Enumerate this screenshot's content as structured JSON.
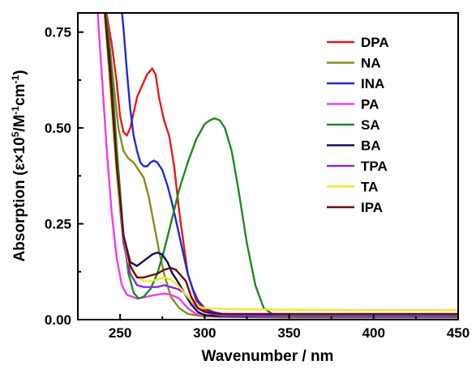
{
  "chart_data": {
    "type": "line",
    "xlabel": "Wavenumber / nm",
    "ylabel_main": "Absorption (ε×10",
    "ylabel_sup1": "5",
    "ylabel_mid": "/M",
    "ylabel_sup2": "-1",
    "ylabel_end": "cm",
    "ylabel_sup3": "-1",
    "ylabel_close": ")",
    "xlim": [
      225,
      450
    ],
    "ylim": [
      0.0,
      0.8
    ],
    "xticks": [
      250,
      300,
      350,
      400,
      450
    ],
    "xtick_labels": [
      "250",
      "300",
      "350",
      "400",
      "450"
    ],
    "yticks": [
      0.0,
      0.25,
      0.5,
      0.75
    ],
    "ytick_labels": [
      "0.00",
      "0.25",
      "0.50",
      "0.75"
    ],
    "legend_position": "top-right",
    "grid": false,
    "series": [
      {
        "name": "DPA",
        "color": "#e41a1c",
        "x": [
          240,
          245,
          248,
          250,
          252,
          254,
          256,
          258,
          260,
          263,
          266,
          269,
          271,
          273,
          276,
          279,
          282,
          285,
          290,
          295,
          300,
          310,
          320,
          350,
          400,
          450
        ],
        "y": [
          0.85,
          0.72,
          0.62,
          0.53,
          0.49,
          0.48,
          0.5,
          0.54,
          0.58,
          0.61,
          0.64,
          0.655,
          0.64,
          0.58,
          0.52,
          0.48,
          0.4,
          0.28,
          0.12,
          0.05,
          0.025,
          0.015,
          0.012,
          0.01,
          0.01,
          0.01
        ]
      },
      {
        "name": "NA",
        "color": "#8b8b1a",
        "x": [
          240,
          243,
          246,
          249,
          252,
          255,
          258,
          261,
          264,
          267,
          270,
          273,
          276,
          280,
          285,
          290,
          300,
          350,
          400,
          450
        ],
        "y": [
          0.85,
          0.75,
          0.62,
          0.5,
          0.44,
          0.42,
          0.41,
          0.39,
          0.37,
          0.32,
          0.25,
          0.18,
          0.12,
          0.06,
          0.03,
          0.015,
          0.008,
          0.005,
          0.005,
          0.005
        ]
      },
      {
        "name": "INA",
        "color": "#1f2ad8",
        "x": [
          250,
          252,
          254,
          256,
          258,
          260,
          262,
          264,
          266,
          268,
          270,
          272,
          275,
          278,
          281,
          284,
          287,
          290,
          293,
          296,
          300,
          305,
          310,
          350,
          400,
          450
        ],
        "y": [
          0.85,
          0.76,
          0.65,
          0.55,
          0.48,
          0.44,
          0.41,
          0.4,
          0.4,
          0.41,
          0.415,
          0.41,
          0.39,
          0.35,
          0.3,
          0.24,
          0.18,
          0.12,
          0.08,
          0.05,
          0.03,
          0.02,
          0.015,
          0.01,
          0.01,
          0.01
        ]
      },
      {
        "name": "PA",
        "color": "#ee3bee",
        "x": [
          236,
          239,
          242,
          245,
          248,
          251,
          254,
          257,
          260,
          264,
          268,
          272,
          276,
          280,
          285,
          290,
          295,
          300,
          350,
          400,
          450
        ],
        "y": [
          0.85,
          0.65,
          0.45,
          0.28,
          0.16,
          0.09,
          0.065,
          0.06,
          0.055,
          0.058,
          0.062,
          0.065,
          0.068,
          0.065,
          0.055,
          0.03,
          0.015,
          0.01,
          0.008,
          0.008,
          0.008
        ]
      },
      {
        "name": "SA",
        "color": "#1f8a1f",
        "x": [
          240,
          244,
          248,
          252,
          255,
          258,
          261,
          264,
          268,
          272,
          276,
          280,
          285,
          290,
          295,
          300,
          303,
          306,
          309,
          312,
          316,
          320,
          325,
          330,
          335,
          340,
          350,
          400,
          450
        ],
        "y": [
          0.85,
          0.7,
          0.45,
          0.22,
          0.12,
          0.07,
          0.055,
          0.06,
          0.08,
          0.12,
          0.18,
          0.25,
          0.34,
          0.41,
          0.47,
          0.51,
          0.52,
          0.525,
          0.52,
          0.5,
          0.44,
          0.34,
          0.2,
          0.09,
          0.03,
          0.015,
          0.012,
          0.012,
          0.012
        ]
      },
      {
        "name": "BA",
        "color": "#101060",
        "x": [
          240,
          244,
          248,
          252,
          256,
          260,
          263,
          266,
          269,
          272,
          275,
          278,
          281,
          284,
          288,
          292,
          296,
          300,
          310,
          350,
          400,
          450
        ],
        "y": [
          0.85,
          0.66,
          0.4,
          0.22,
          0.15,
          0.14,
          0.15,
          0.16,
          0.17,
          0.175,
          0.17,
          0.15,
          0.12,
          0.1,
          0.07,
          0.04,
          0.02,
          0.012,
          0.008,
          0.008,
          0.008,
          0.008
        ]
      },
      {
        "name": "TPA",
        "color": "#8a2be2",
        "x": [
          240,
          244,
          248,
          252,
          256,
          260,
          264,
          268,
          272,
          276,
          280,
          284,
          288,
          292,
          296,
          300,
          310,
          350,
          400,
          450
        ],
        "y": [
          0.85,
          0.62,
          0.38,
          0.2,
          0.12,
          0.09,
          0.085,
          0.085,
          0.085,
          0.09,
          0.085,
          0.08,
          0.07,
          0.05,
          0.03,
          0.02,
          0.01,
          0.008,
          0.008,
          0.008
        ]
      },
      {
        "name": "TA",
        "color": "#f5e62a",
        "x": [
          240,
          244,
          248,
          252,
          255,
          258,
          261,
          264,
          268,
          272,
          276,
          280,
          284,
          288,
          292,
          296,
          300,
          310,
          320,
          350,
          400,
          450
        ],
        "y": [
          0.85,
          0.62,
          0.38,
          0.22,
          0.15,
          0.12,
          0.11,
          0.1,
          0.1,
          0.105,
          0.11,
          0.105,
          0.09,
          0.07,
          0.05,
          0.035,
          0.03,
          0.028,
          0.027,
          0.026,
          0.025,
          0.025
        ]
      },
      {
        "name": "IPA",
        "color": "#6b0d0d",
        "x": [
          240,
          244,
          248,
          252,
          256,
          260,
          264,
          268,
          272,
          276,
          280,
          283,
          286,
          289,
          292,
          296,
          300,
          310,
          350,
          400,
          450
        ],
        "y": [
          0.85,
          0.64,
          0.4,
          0.22,
          0.14,
          0.11,
          0.11,
          0.115,
          0.12,
          0.13,
          0.135,
          0.13,
          0.115,
          0.1,
          0.06,
          0.03,
          0.02,
          0.015,
          0.015,
          0.015,
          0.015
        ]
      }
    ]
  }
}
